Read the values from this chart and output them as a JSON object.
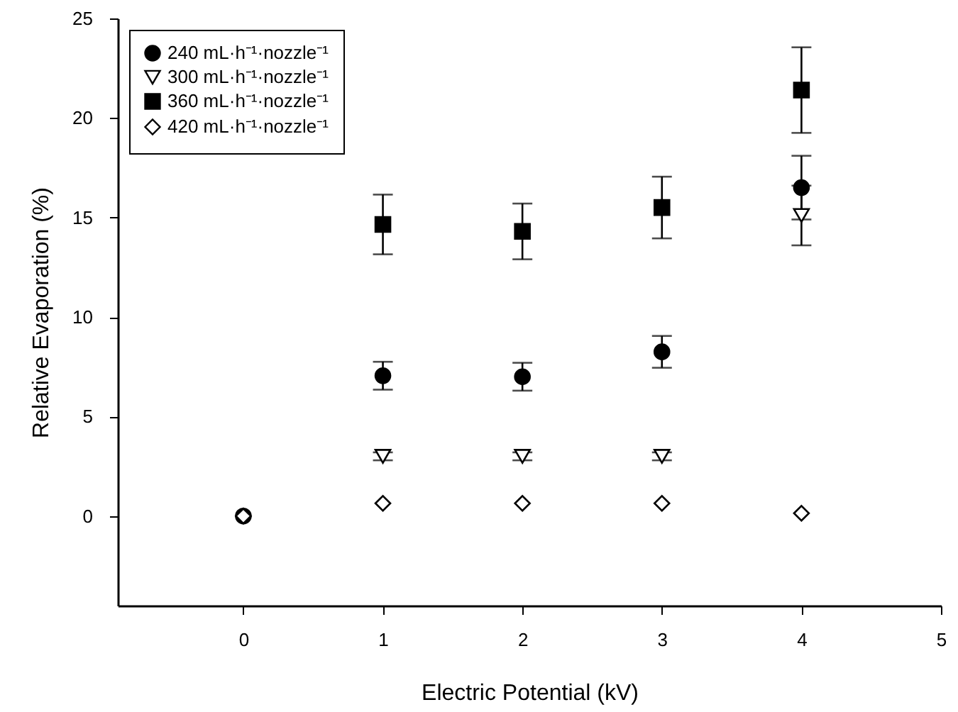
{
  "chart_data": {
    "type": "scatter",
    "xlabel": "Electric Potential (kV)",
    "ylabel": "Relative Evaporation (%)",
    "x": [
      0,
      1,
      2,
      3,
      4
    ],
    "series": [
      {
        "name": "240 mL·h⁻¹·nozzle⁻¹",
        "color": "#000000",
        "marker": "circle",
        "values": [
          0,
          7.05,
          7.0,
          8.25,
          16.5
        ],
        "errors": [
          null,
          0.7,
          0.7,
          0.8,
          1.6
        ]
      },
      {
        "name": "300 mL·h⁻¹·nozzle⁻¹",
        "color": "#ffffff",
        "marker": "triangle",
        "values": [
          null,
          3.0,
          3.0,
          3.0,
          15.1
        ],
        "errors": [
          null,
          0.2,
          0.2,
          0.2,
          1.5
        ]
      },
      {
        "name": "360 mL·h⁻¹·nozzle⁻¹",
        "color": "#000000",
        "marker": "square",
        "values": [
          null,
          14.65,
          14.3,
          15.5,
          21.4
        ],
        "errors": [
          null,
          1.5,
          1.4,
          1.55,
          2.15
        ]
      },
      {
        "name": "420 mL·h⁻¹·nozzle⁻¹",
        "color": "#ffffff",
        "marker": "diamond",
        "values": [
          0,
          0.64,
          0.64,
          0.64,
          0.14
        ],
        "errors": [
          null,
          null,
          null,
          null,
          null
        ]
      }
    ],
    "xlim": [
      -0.9,
      5
    ],
    "ylim": [
      -4.5,
      25
    ],
    "xticks": [
      0,
      1,
      2,
      3,
      4,
      5
    ],
    "yticks": [
      0,
      5,
      10,
      15,
      20,
      25
    ],
    "legend": "top left",
    "grid": false
  }
}
